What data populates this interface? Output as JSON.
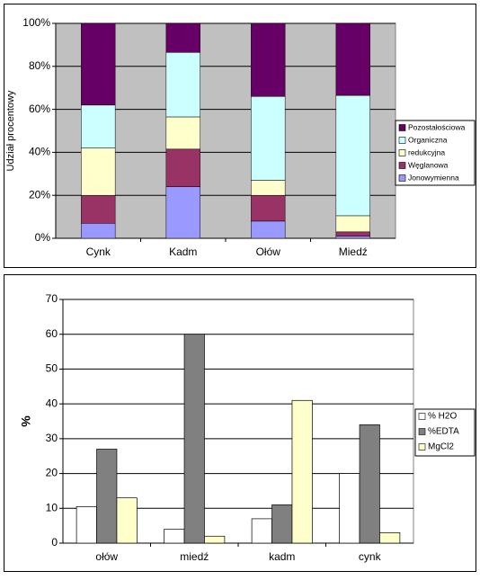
{
  "chart_data": [
    {
      "type": "bar",
      "stacked": true,
      "y_label": "Udział procentowy",
      "categories": [
        "Cynk",
        "Kadm",
        "Ołów",
        "Miedź"
      ],
      "series": [
        {
          "name": "Jonowymienna",
          "color": "#9999ff",
          "values": [
            7,
            24,
            8,
            1
          ]
        },
        {
          "name": "Węglanowa",
          "color": "#993366",
          "values": [
            13,
            17.5,
            12,
            2
          ]
        },
        {
          "name": "redukcyjna",
          "color": "#ffffcc",
          "values": [
            22,
            15,
            7,
            7.5
          ]
        },
        {
          "name": "Organiczna",
          "color": "#ccffff",
          "values": [
            20,
            30,
            39,
            56
          ]
        },
        {
          "name": "Pozostałościowa",
          "color": "#660066",
          "values": [
            38,
            13.5,
            34,
            33.5
          ]
        }
      ],
      "ylim": [
        0,
        100
      ],
      "yticks": [
        {
          "value": 0,
          "label": "0%"
        },
        {
          "value": 20,
          "label": "20%"
        },
        {
          "value": 40,
          "label": "40%"
        },
        {
          "value": 60,
          "label": "60%"
        },
        {
          "value": 80,
          "label": "80%"
        },
        {
          "value": 100,
          "label": "100%"
        }
      ],
      "grid": true,
      "plot_background": "#c0c0c0",
      "legend_reversed": true
    },
    {
      "type": "bar",
      "stacked": false,
      "y_label": "%",
      "categories": [
        "ołów",
        "miedź",
        "kadm",
        "cynk"
      ],
      "series": [
        {
          "name": "% H2O",
          "color": "#ffffff",
          "values": [
            10.5,
            4,
            7,
            20
          ]
        },
        {
          "name": "%EDTA",
          "color": "#808080",
          "values": [
            27,
            60,
            11,
            34
          ]
        },
        {
          "name": "MgCl2",
          "color": "#ffffcc",
          "values": [
            13,
            2,
            41,
            3
          ]
        }
      ],
      "ylim": [
        0,
        70
      ],
      "yticks": [
        0,
        10,
        20,
        30,
        40,
        50,
        60,
        70
      ],
      "grid": true,
      "plot_background": "#ffffff",
      "legend_reversed": false
    }
  ]
}
